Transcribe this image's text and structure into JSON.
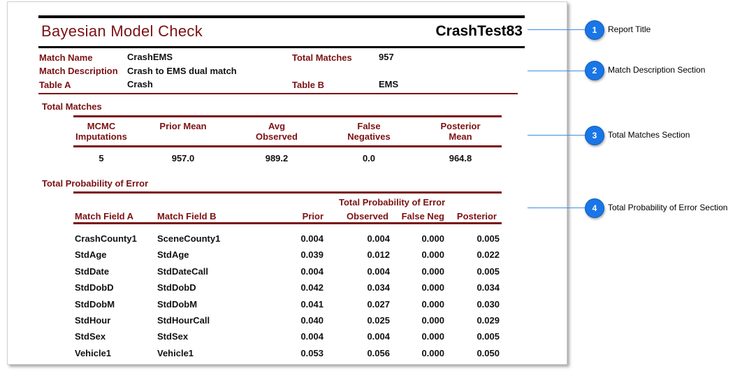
{
  "report": {
    "title": "Bayesian Model Check",
    "test_name": "CrashTest83"
  },
  "match_description": {
    "match_name_label": "Match Name",
    "match_name": "CrashEMS",
    "match_description_label": "Match Description",
    "match_description": "Crash to EMS dual match",
    "table_a_label": "Table A",
    "table_a": "Crash",
    "total_matches_label": "Total Matches",
    "total_matches": "957",
    "table_b_label": "Table B",
    "table_b": "EMS"
  },
  "total_matches": {
    "section_title": "Total Matches",
    "headers": [
      "MCMC Imputations",
      "Prior Mean",
      "Avg Observed",
      "False Negatives",
      "Posterior Mean"
    ],
    "values": [
      "5",
      "957.0",
      "989.2",
      "0.0",
      "964.8"
    ]
  },
  "probability_error": {
    "section_title": "Total Probability of Error",
    "group_header": "Total Probability of Error",
    "headers": [
      "Match Field A",
      "Match Field B",
      "Prior",
      "Observed",
      "False Neg",
      "Posterior"
    ],
    "rows": [
      [
        "CrashCounty1",
        "SceneCounty1",
        "0.004",
        "0.004",
        "0.000",
        "0.005"
      ],
      [
        "StdAge",
        "StdAge",
        "0.039",
        "0.012",
        "0.000",
        "0.022"
      ],
      [
        "StdDate",
        "StdDateCall",
        "0.004",
        "0.004",
        "0.000",
        "0.005"
      ],
      [
        "StdDobD",
        "StdDobD",
        "0.042",
        "0.034",
        "0.000",
        "0.034"
      ],
      [
        "StdDobM",
        "StdDobM",
        "0.041",
        "0.027",
        "0.000",
        "0.030"
      ],
      [
        "StdHour",
        "StdHourCall",
        "0.040",
        "0.025",
        "0.000",
        "0.029"
      ],
      [
        "StdSex",
        "StdSex",
        "0.004",
        "0.004",
        "0.000",
        "0.005"
      ],
      [
        "Vehicle1",
        "Vehicle1",
        "0.053",
        "0.056",
        "0.000",
        "0.050"
      ]
    ]
  },
  "callouts": [
    {
      "number": "1",
      "label": "Report Title"
    },
    {
      "number": "2",
      "label": "Match Description Section"
    },
    {
      "number": "3",
      "label": "Total Matches Section"
    },
    {
      "number": "4",
      "label": "Total Probability of Error Section"
    }
  ],
  "colors": {
    "accent": "#7b1113",
    "callout": "#1976e6"
  }
}
